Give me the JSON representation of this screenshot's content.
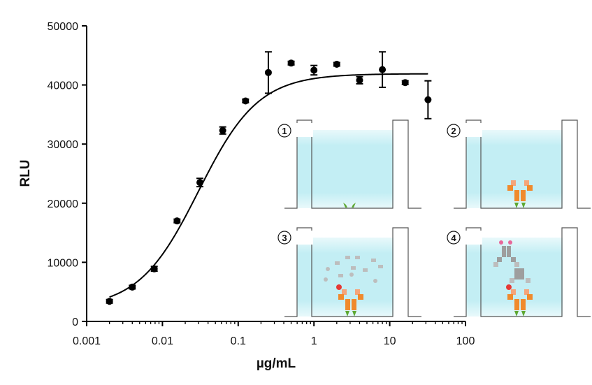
{
  "chart_data": {
    "type": "scatter",
    "title": "",
    "xlabel": "µg/mL",
    "ylabel": "RLU",
    "x_scale": "log",
    "xlim": [
      0.001,
      100
    ],
    "ylim": [
      0,
      50000
    ],
    "x_ticks": [
      0.001,
      0.01,
      0.1,
      1,
      10,
      100
    ],
    "x_tick_labels": [
      "0.001",
      "0.01",
      "0.1",
      "1",
      "10",
      "100"
    ],
    "y_ticks": [
      0,
      10000,
      20000,
      30000,
      40000,
      50000
    ],
    "y_tick_labels": [
      "0",
      "10000",
      "20000",
      "30000",
      "40000",
      "50000"
    ],
    "grid": false,
    "series": [
      {
        "points": [
          {
            "x": 0.002,
            "y": 3400,
            "err": 300
          },
          {
            "x": 0.004,
            "y": 5800,
            "err": 300
          },
          {
            "x": 0.0078,
            "y": 8900,
            "err": 400
          },
          {
            "x": 0.0156,
            "y": 17000,
            "err": 300
          },
          {
            "x": 0.03125,
            "y": 23500,
            "err": 700
          },
          {
            "x": 0.0625,
            "y": 32300,
            "err": 600
          },
          {
            "x": 0.125,
            "y": 37300,
            "err": 300
          },
          {
            "x": 0.25,
            "y": 42100,
            "err": 3500
          },
          {
            "x": 0.5,
            "y": 43700,
            "err": 300
          },
          {
            "x": 1,
            "y": 42500,
            "err": 800
          },
          {
            "x": 2,
            "y": 43500,
            "err": 300
          },
          {
            "x": 4,
            "y": 40800,
            "err": 600
          },
          {
            "x": 8,
            "y": 42600,
            "err": 3000
          },
          {
            "x": 16,
            "y": 40400,
            "err": 300
          },
          {
            "x": 32,
            "y": 37500,
            "err": 3200
          }
        ]
      }
    ],
    "fit": {
      "type": "4PL",
      "bottom": 2200,
      "top": 41900,
      "ec50": 0.03,
      "hill": 1.1
    },
    "inset_steps": [
      "1",
      "2",
      "3",
      "4"
    ]
  }
}
